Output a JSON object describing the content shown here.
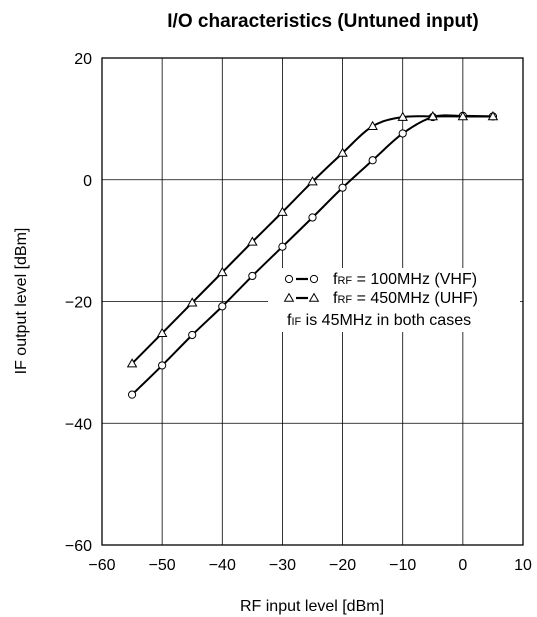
{
  "chart_data": {
    "type": "line",
    "title": "I/O characteristics (Untuned input)",
    "xlabel": "RF input level [dBm]",
    "ylabel": "IF output level [dBm]",
    "xlim": [
      -60,
      10
    ],
    "ylim": [
      -60,
      20
    ],
    "xticks": [
      "−60",
      "−50",
      "−40",
      "−30",
      "−20",
      "−10",
      "0",
      "10"
    ],
    "yticks": [
      "20",
      "0",
      "−20",
      "−40",
      "−60"
    ],
    "grid": true,
    "legend_position": "center-right",
    "legend_note": "is 45MHz in both cases",
    "series": [
      {
        "name": "fRF = 100MHz (VHF)",
        "legend_prefix": "f",
        "legend_sub": "RF",
        "legend_rest": " = 100MHz (VHF)",
        "marker": "circle",
        "x": [
          -55,
          -50,
          -45,
          -40,
          -35,
          -30,
          -25,
          -20,
          -15,
          -10,
          -5,
          0,
          5
        ],
        "y": [
          -35.3,
          -30.5,
          -25.5,
          -20.8,
          -15.8,
          -11,
          -6.2,
          -1.3,
          3.2,
          7.6,
          10.3,
          10.5,
          10.4
        ]
      },
      {
        "name": "fRF = 450MHz (UHF)",
        "legend_prefix": "f",
        "legend_sub": "RF",
        "legend_rest": " = 450MHz (UHF)",
        "marker": "triangle",
        "x": [
          -55,
          -50,
          -45,
          -40,
          -35,
          -30,
          -25,
          -20,
          -15,
          -10,
          -5,
          0,
          5
        ],
        "y": [
          -30.2,
          -25.2,
          -20.2,
          -15.2,
          -10.2,
          -5.3,
          -0.3,
          4.4,
          8.8,
          10.3,
          10.4,
          10.4,
          10.4
        ]
      }
    ]
  }
}
